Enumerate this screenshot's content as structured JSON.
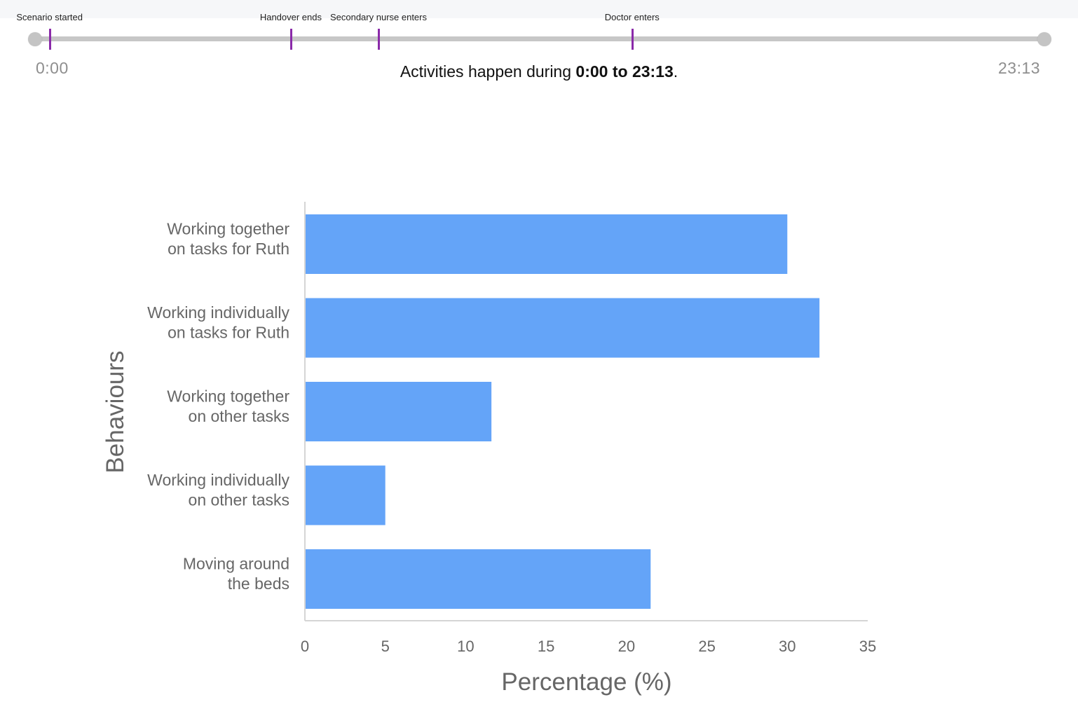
{
  "timeline": {
    "start_time": "0:00",
    "end_time": "23:13",
    "markers": [
      {
        "label": "Scenario started",
        "time_seconds": 20
      },
      {
        "label": "Handover ends",
        "time_seconds": 353
      },
      {
        "label": "Secondary nurse enters",
        "time_seconds": 474
      },
      {
        "label": "Doctor enters",
        "time_seconds": 824
      }
    ],
    "total_seconds": 1393,
    "marker_color": "#8a2aa9",
    "track_color": "#c7c7c7"
  },
  "range_text": {
    "prefix": "Activities happen during ",
    "range": "0:00 to 23:13",
    "suffix": "."
  },
  "chart_data": {
    "type": "bar",
    "orientation": "horizontal",
    "categories": [
      [
        "Working together",
        "on tasks for Ruth"
      ],
      [
        "Working individually",
        "on tasks for Ruth"
      ],
      [
        "Working together",
        "on other tasks"
      ],
      [
        "Working individually",
        "on other tasks"
      ],
      [
        "Moving around",
        "the beds"
      ]
    ],
    "values": [
      30.0,
      32.0,
      11.6,
      5.0,
      21.5
    ],
    "xlabel": "Percentage (%)",
    "ylabel": "Behaviours",
    "xlim": [
      0,
      35
    ],
    "xticks": [
      "0",
      "5",
      "10",
      "15",
      "20",
      "25",
      "30",
      "35"
    ],
    "bar_color": "#64a4f8",
    "grid": false
  }
}
